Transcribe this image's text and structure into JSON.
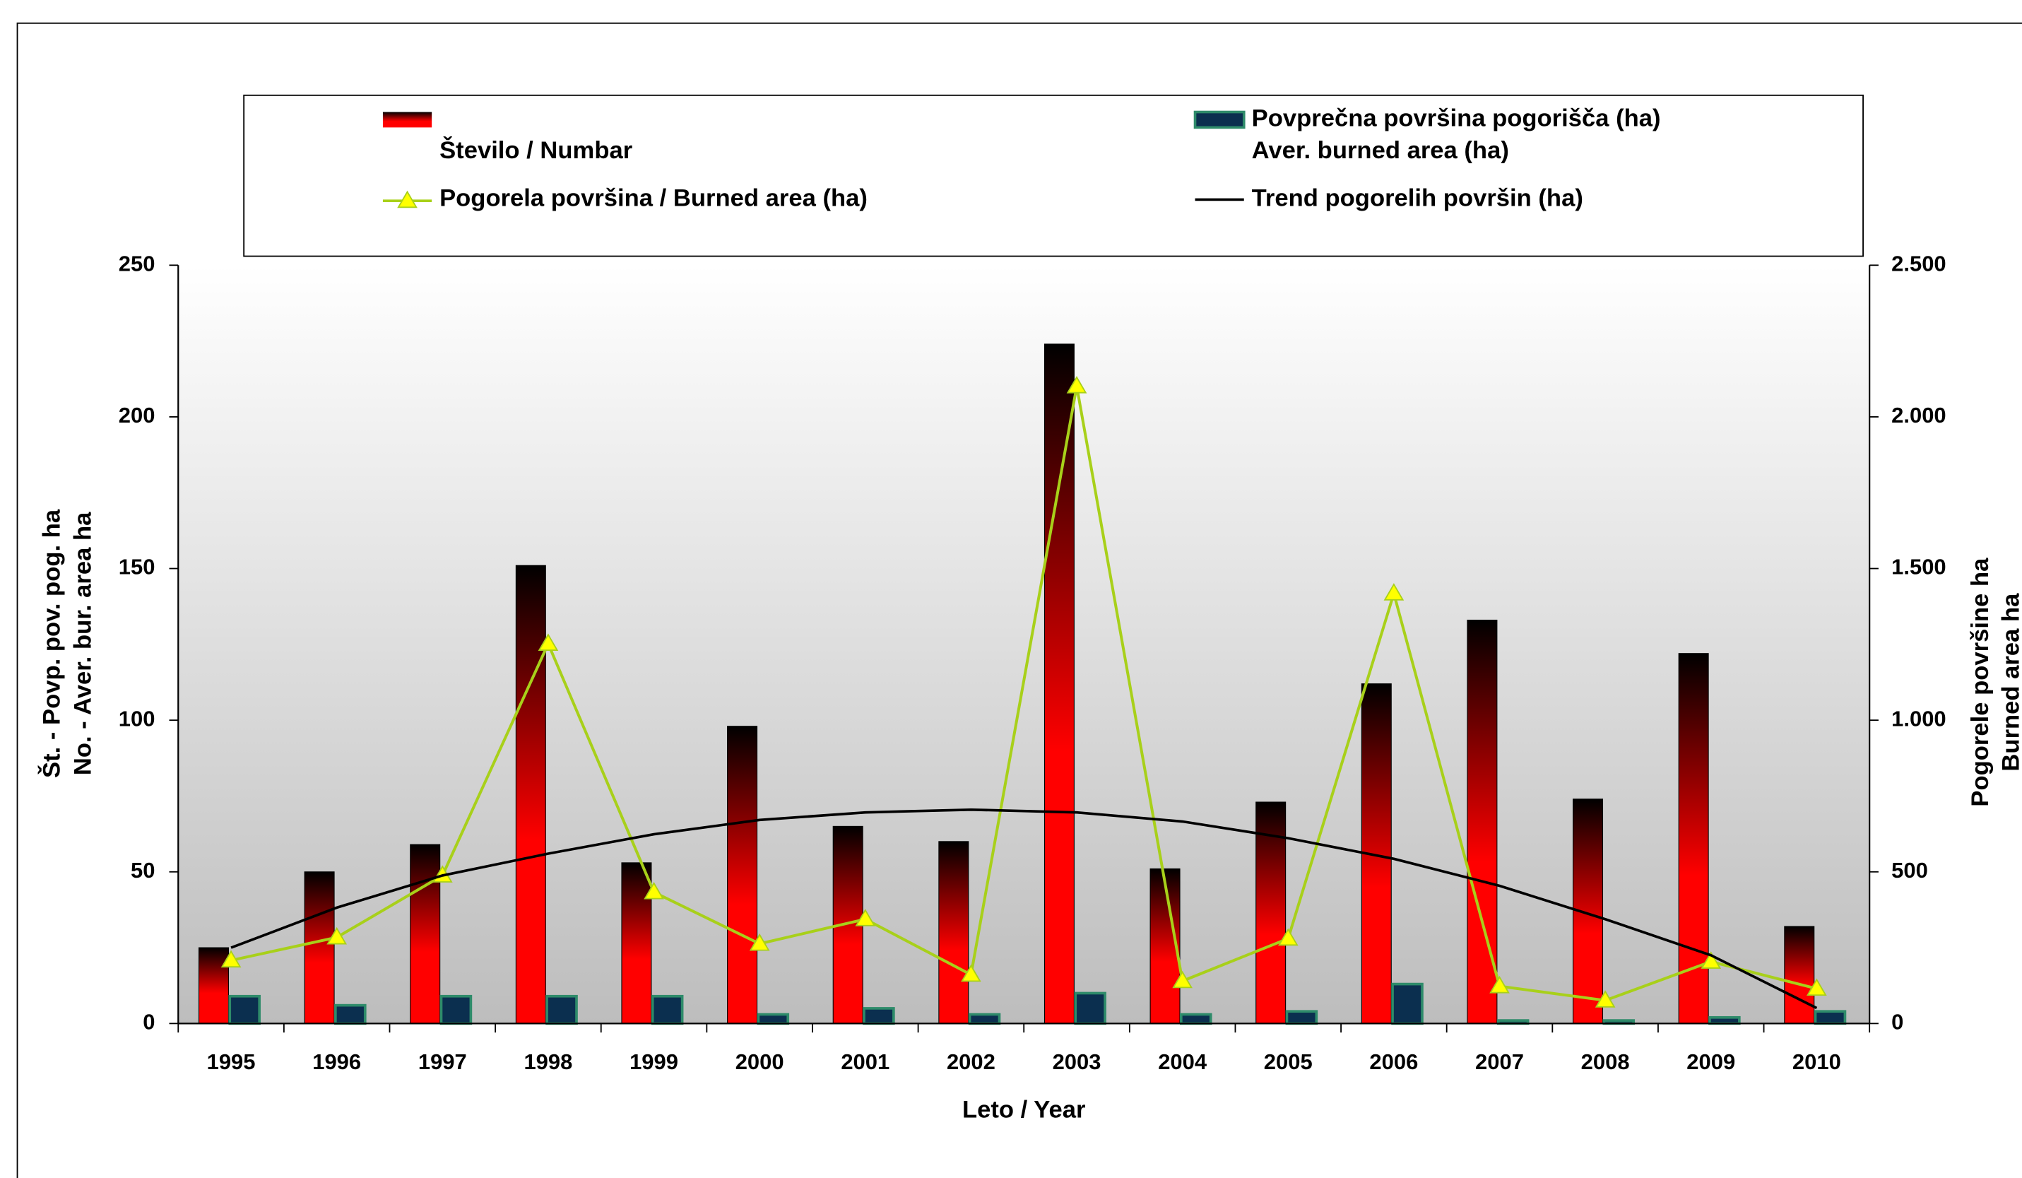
{
  "chart_data": {
    "type": "bar",
    "categories": [
      "1995",
      "1996",
      "1997",
      "1998",
      "1999",
      "2000",
      "2001",
      "2002",
      "2003",
      "2004",
      "2005",
      "2006",
      "2007",
      "2008",
      "2009",
      "2010"
    ],
    "series": [
      {
        "name": "Število / Numbar",
        "type": "bar",
        "color": "#ff0000",
        "values": [
          25,
          50,
          59,
          151,
          53,
          98,
          65,
          60,
          224,
          51,
          73,
          112,
          133,
          74,
          122,
          32
        ]
      },
      {
        "name": "Povprečna površina pogorišča (ha)\nAver. burned area (ha)",
        "type": "bar",
        "color": "#0b2f4f",
        "values": [
          9,
          6,
          9,
          9,
          9,
          3,
          5,
          3,
          10,
          3,
          4,
          13,
          1,
          1,
          2,
          4
        ]
      },
      {
        "name": "Pogorela površina / Burned area (ha)",
        "type": "line",
        "axis": "y2",
        "color": "#a8d01a",
        "values": [
          208,
          284,
          488,
          1252,
          433,
          263,
          344,
          161,
          2101,
          140,
          280,
          1418,
          123,
          76,
          204,
          115
        ]
      },
      {
        "name": "Trend pogorelih površin (ha)",
        "type": "line",
        "axis": "y2",
        "color": "#000000",
        "values": [
          250,
          382,
          488,
          560,
          624,
          671,
          696,
          705,
          696,
          666,
          611,
          543,
          454,
          344,
          225,
          51
        ]
      }
    ],
    "xlabel": "Leto / Year",
    "ylabel": [
      "Št. - Povp. pov. pog. ha",
      "No. - Aver. bur. area ha"
    ],
    "y2label": [
      "Pogorele površine ha",
      "Burned area ha"
    ],
    "ylim": [
      0,
      250
    ],
    "yticks": [
      0,
      50,
      100,
      150,
      200,
      250
    ],
    "y2lim": [
      0,
      2500
    ],
    "y2ticks": [
      0,
      500,
      {
        "value": 1000,
        "label": "1.000"
      },
      {
        "value": 1500,
        "label": "1.500"
      },
      {
        "value": 2000,
        "label": "2.000"
      },
      {
        "value": 2500,
        "label": "2.500"
      }
    ]
  }
}
